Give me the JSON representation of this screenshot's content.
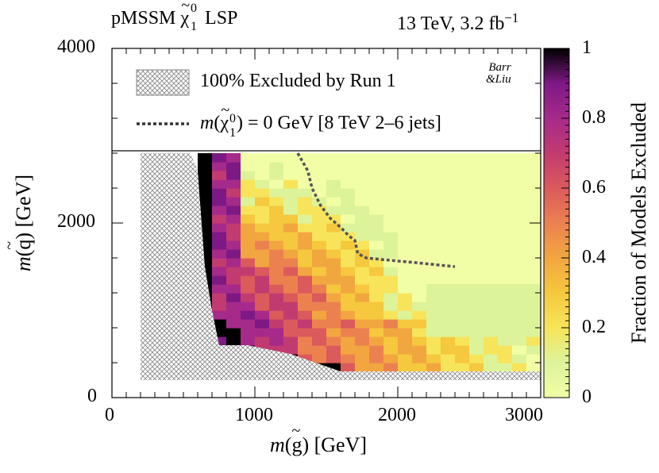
{
  "chart_data": {
    "type": "heatmap",
    "header_left": {
      "prefix": "pMSSM ",
      "symbol": "χ",
      "sup": "0",
      "sub": "1",
      "suffix": " LSP"
    },
    "header_right": {
      "text": "13 TeV, 3.2 fb",
      "sup": "−1"
    },
    "xlabel": {
      "fn": "m",
      "open": "(",
      "particle": "g",
      "close": ") [GeV]"
    },
    "ylabel": {
      "fn": "m",
      "open": "(",
      "particle": "q",
      "close": ") [GeV]"
    },
    "zlabel": "Fraction of Models Excluded",
    "xlim": [
      0,
      3000
    ],
    "ylim": [
      0,
      4000
    ],
    "zlim": [
      0,
      1
    ],
    "xticks": [
      "0",
      "1000",
      "2000",
      "3000"
    ],
    "yticks": [
      "0",
      "2000",
      "4000"
    ],
    "zticks": [
      "0",
      "0.2",
      "0.4",
      "0.6",
      "0.8",
      "1"
    ],
    "legend": {
      "position": "top",
      "hatched_label": "100% Excluded by Run 1",
      "line_label": {
        "fn": "m",
        "symbol": "χ",
        "sup": "0",
        "sub": "1",
        "rest": ") = 0 GeV [8 TeV 2–6 jets]"
      }
    },
    "watermark": {
      "line1": "Barr",
      "line2": "&Liu"
    },
    "hatched_region": {
      "description": "region fully excluded by Run 1",
      "x_range": [
        200,
        3000
      ],
      "y_floor": 200,
      "boundary": [
        [
          200,
          2800
        ],
        [
          200,
          200
        ],
        [
          3000,
          200
        ],
        [
          3000,
          300
        ],
        [
          1600,
          300
        ],
        [
          1250,
          500
        ],
        [
          950,
          600
        ],
        [
          750,
          600
        ],
        [
          700,
          1000
        ],
        [
          650,
          1500
        ],
        [
          600,
          2600
        ],
        [
          550,
          2800
        ]
      ]
    },
    "dashed_contour": {
      "x": [
        1300,
        1370,
        1400,
        1460,
        1530,
        1600,
        1660,
        1700,
        1720,
        1780,
        1900,
        2100,
        2400
      ],
      "y": [
        2800,
        2600,
        2400,
        2200,
        2050,
        1950,
        1850,
        1800,
        1650,
        1600,
        1580,
        1550,
        1500
      ]
    },
    "colormap": [
      "#f2fea5",
      "#ddf39a",
      "#f7e45a",
      "#f5c83e",
      "#f2a640",
      "#ec8150",
      "#db5a5c",
      "#c23b70",
      "#a62a8a",
      "#7d1985",
      "#000000"
    ],
    "cell": {
      "dx": 100,
      "dy": 100
    }
  }
}
